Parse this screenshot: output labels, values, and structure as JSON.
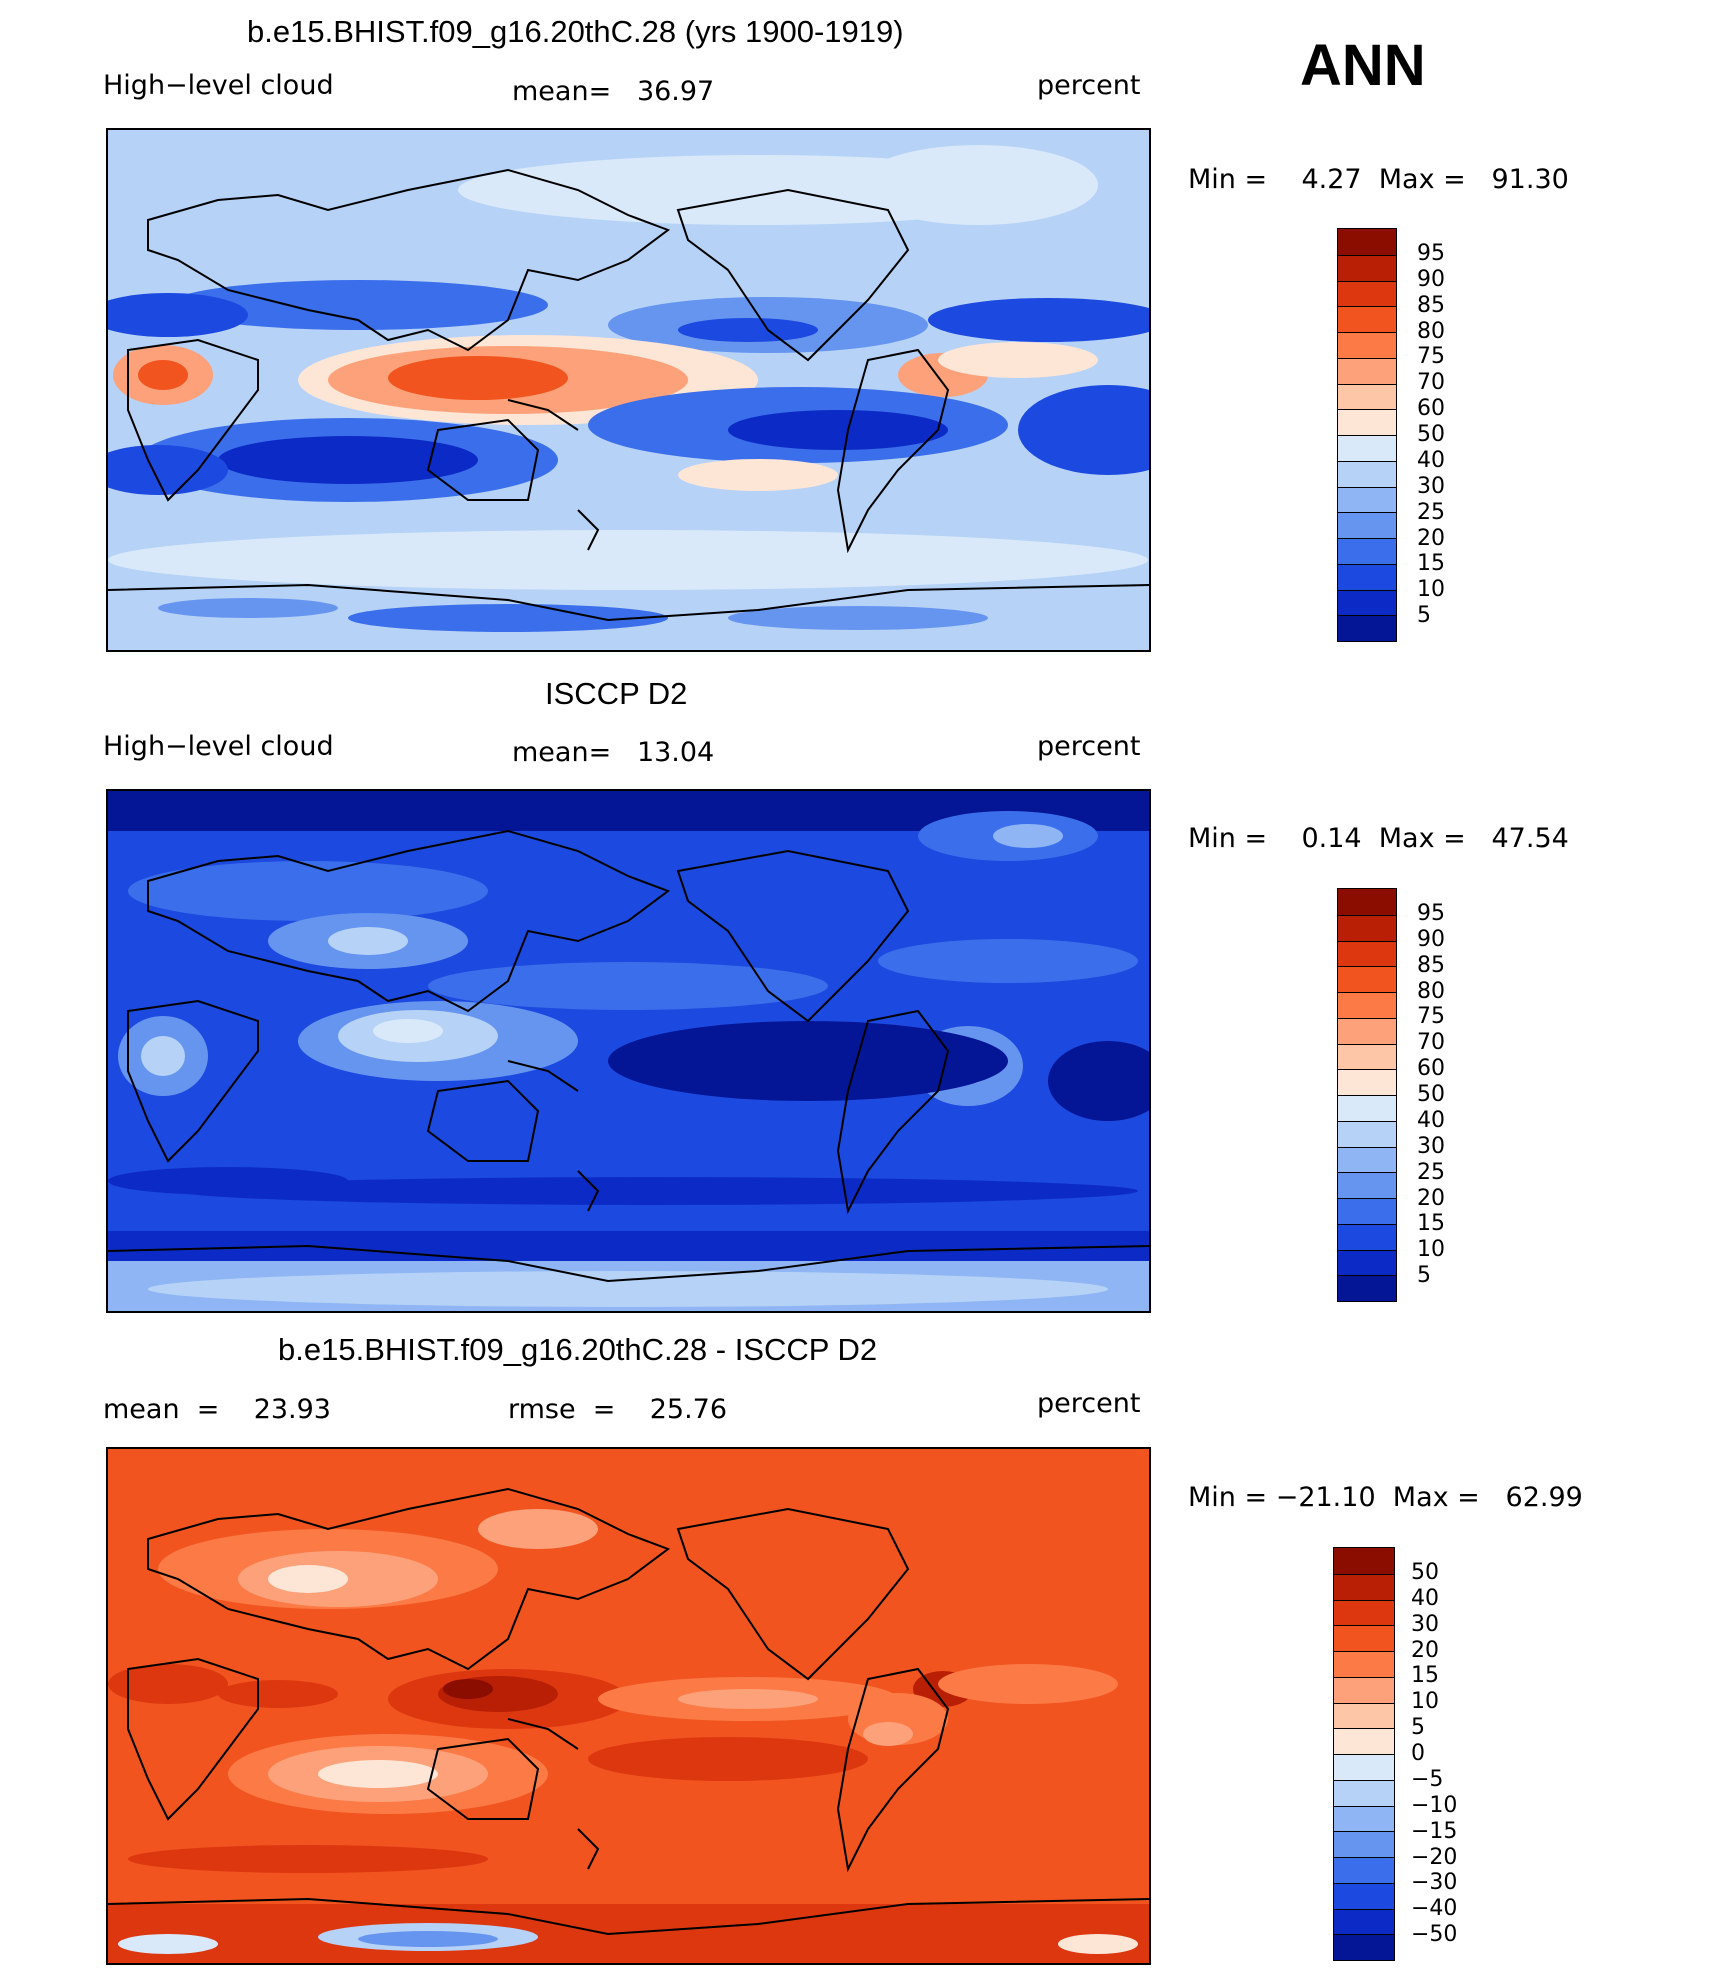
{
  "season": "ANN",
  "panels": [
    {
      "title": "b.e15.BHIST.f09_g16.20thC.28 (yrs 1900-1919)",
      "left_label": "High−level cloud",
      "center_label": "mean=   36.97",
      "units": "percent",
      "minmax": "Min =    4.27  Max =   91.30",
      "levels": [
        "95",
        "90",
        "85",
        "80",
        "75",
        "70",
        "60",
        "50",
        "40",
        "30",
        "25",
        "20",
        "15",
        "10",
        "5"
      ],
      "colors": [
        "#8b0d00",
        "#b81f05",
        "#dd3710",
        "#f1541e",
        "#fb7a45",
        "#fca17a",
        "#fdc6a6",
        "#fde6d6",
        "#d9e9f9",
        "#b6d2f7",
        "#8fb5f4",
        "#6695f0",
        "#3b6eea",
        "#1c49df",
        "#0c2bc6",
        "#041596"
      ]
    },
    {
      "title": "ISCCP D2",
      "left_label": "High−level cloud",
      "center_label": "mean=   13.04",
      "units": "percent",
      "minmax": "Min =    0.14  Max =   47.54",
      "levels": [
        "95",
        "90",
        "85",
        "80",
        "75",
        "70",
        "60",
        "50",
        "40",
        "30",
        "25",
        "20",
        "15",
        "10",
        "5"
      ],
      "colors": [
        "#8b0d00",
        "#b81f05",
        "#dd3710",
        "#f1541e",
        "#fb7a45",
        "#fca17a",
        "#fdc6a6",
        "#fde6d6",
        "#d9e9f9",
        "#b6d2f7",
        "#8fb5f4",
        "#6695f0",
        "#3b6eea",
        "#1c49df",
        "#0c2bc6",
        "#041596"
      ]
    },
    {
      "title": "b.e15.BHIST.f09_g16.20thC.28 - ISCCP D2",
      "left_label": "mean  =    23.93",
      "center_label": "rmse  =    25.76",
      "units": "percent",
      "minmax": "Min = −21.10  Max =   62.99",
      "levels": [
        "50",
        "40",
        "30",
        "20",
        "15",
        "10",
        "5",
        "0",
        "−5",
        "−10",
        "−15",
        "−20",
        "−30",
        "−40",
        "−50"
      ],
      "colors": [
        "#8b0d00",
        "#b81f05",
        "#dd3710",
        "#f1541e",
        "#fb7a45",
        "#fca17a",
        "#fdc6a6",
        "#fde6d6",
        "#d9e9f9",
        "#b6d2f7",
        "#8fb5f4",
        "#6695f0",
        "#3b6eea",
        "#1c49df",
        "#0c2bc6",
        "#041596"
      ]
    }
  ]
}
